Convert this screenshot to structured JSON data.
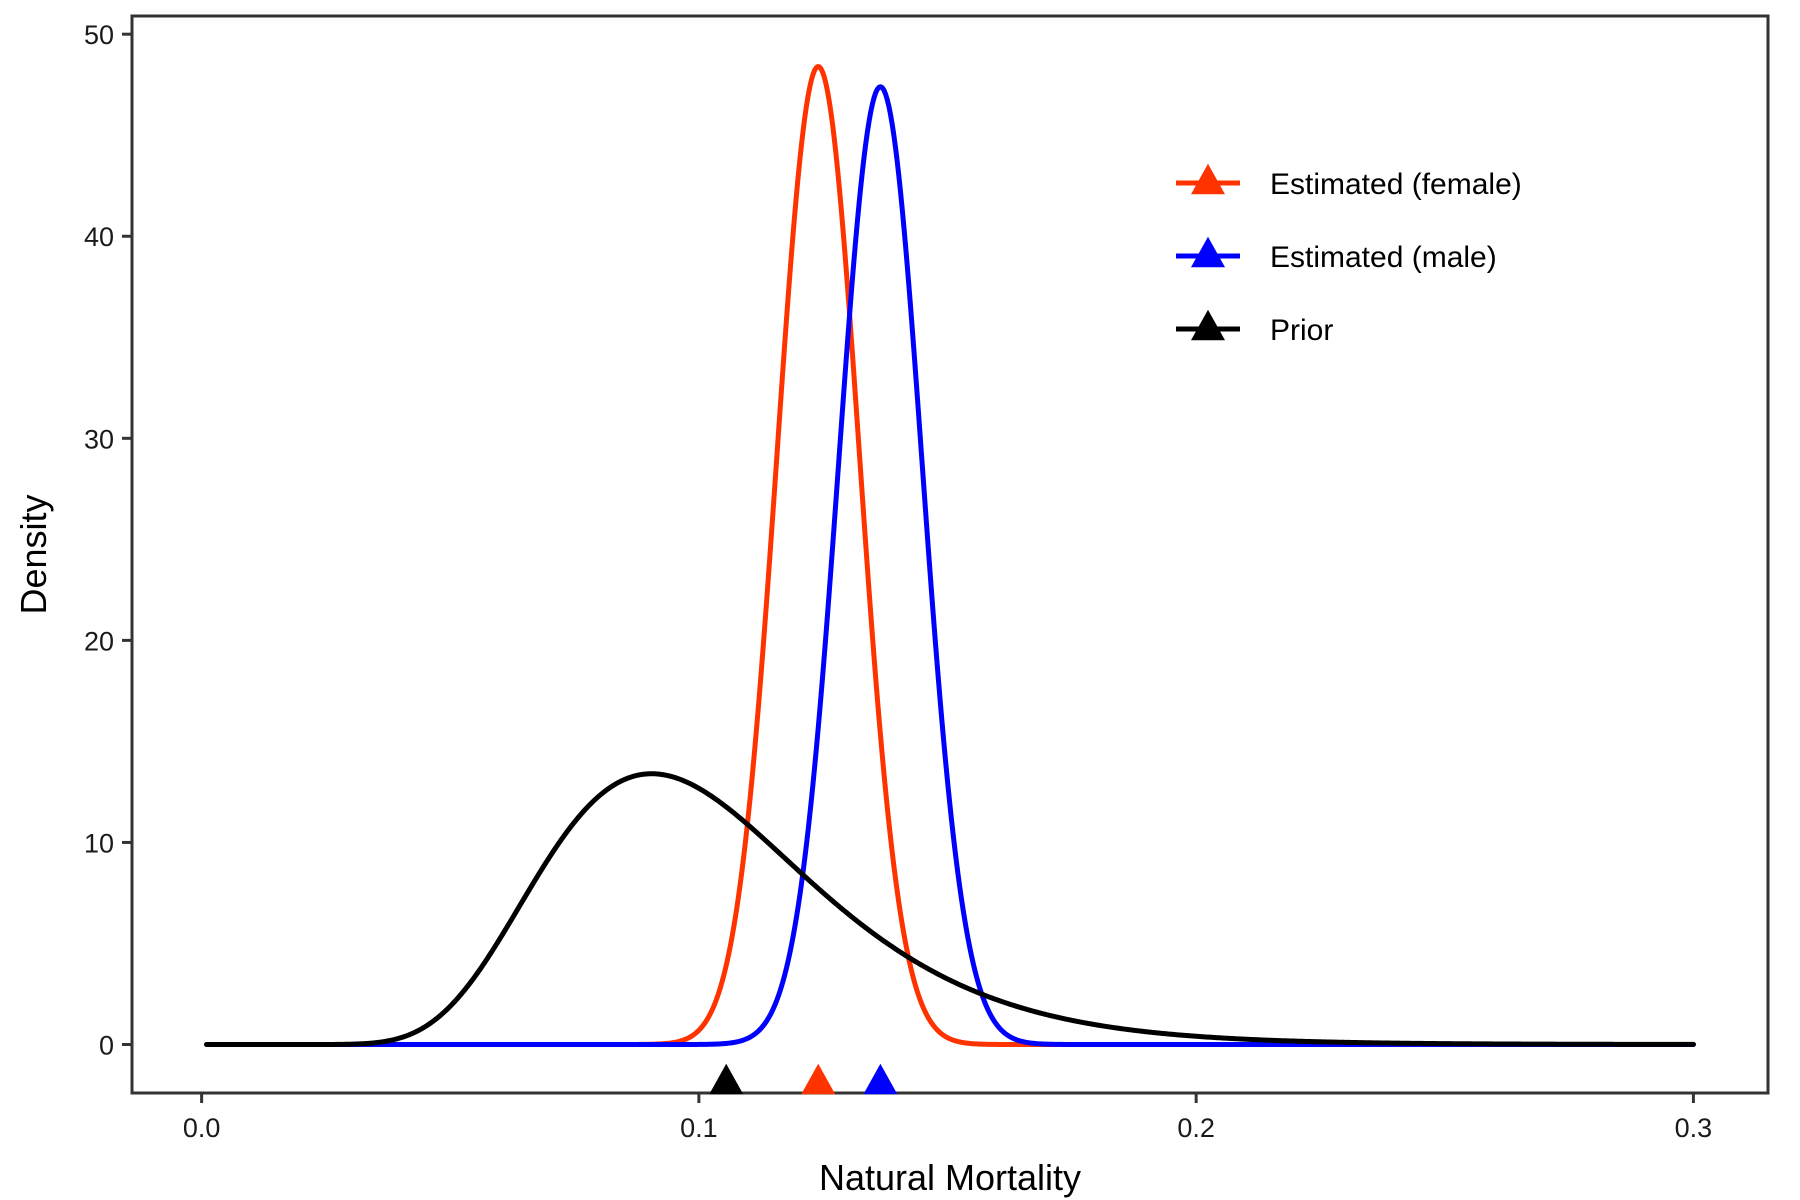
{
  "chart_data": {
    "type": "line",
    "xlabel": "Natural Mortality",
    "ylabel": "Density",
    "xlim": [
      -0.014,
      0.315
    ],
    "ylim": [
      -2.4,
      50.9
    ],
    "x_ticks": [
      0.0,
      0.1,
      0.2,
      0.3
    ],
    "x_tick_labels": [
      "0.0",
      "0.1",
      "0.2",
      "0.3"
    ],
    "y_ticks": [
      0,
      10,
      20,
      30,
      40,
      50
    ],
    "y_tick_labels": [
      "0",
      "10",
      "20",
      "30",
      "40",
      "50"
    ],
    "grid": false,
    "legend_position": "top-right",
    "x_range": [
      0.001,
      0.3
    ],
    "series": [
      {
        "name": "Estimated (female)",
        "color": "#ff3300",
        "distribution": "normal",
        "mean": 0.124,
        "sd": 0.00825,
        "peak_density": 48.4,
        "marker_x": 0.124
      },
      {
        "name": "Estimated (male)",
        "color": "#0000ff",
        "distribution": "normal",
        "mean": 0.1365,
        "sd": 0.0084,
        "peak_density": 47.4,
        "marker_x": 0.1365
      },
      {
        "name": "Prior",
        "color": "#000000",
        "distribution": "lognormal",
        "mode": 0.0905,
        "sigma": 0.3,
        "peak_density": 13.4,
        "marker_x": 0.1055
      }
    ]
  }
}
